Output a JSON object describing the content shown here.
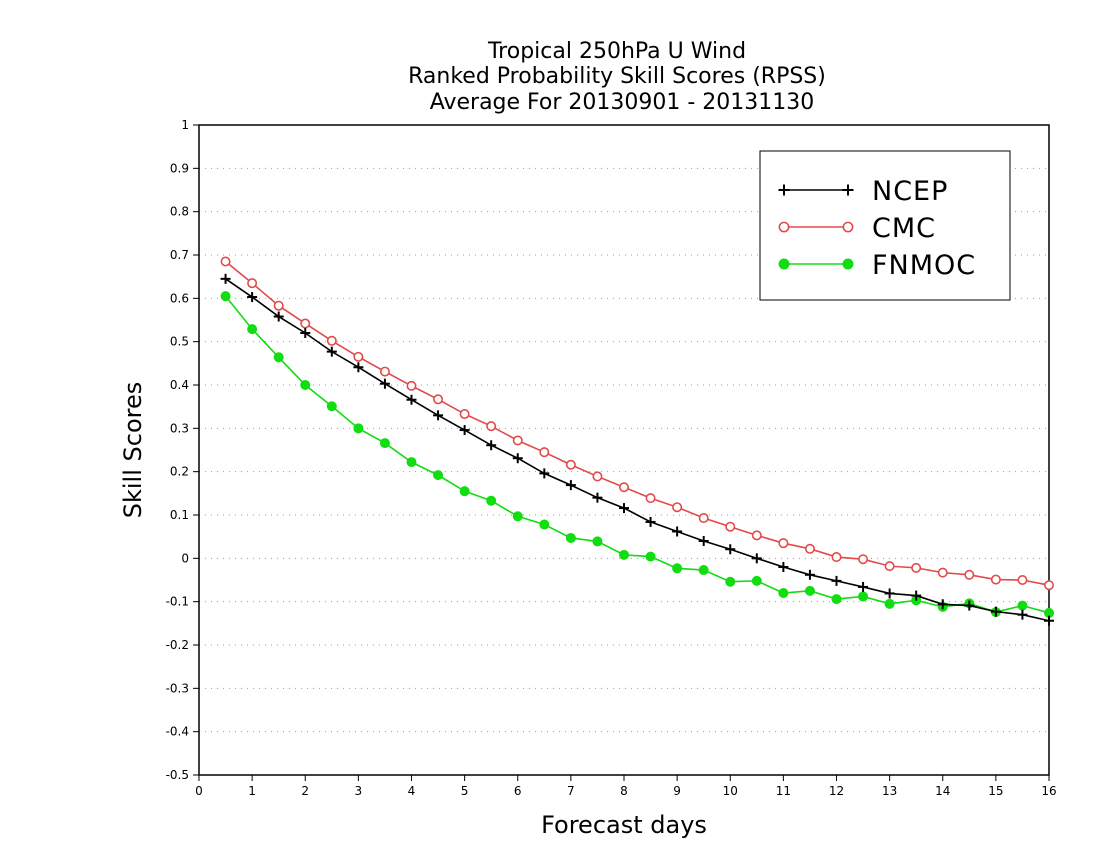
{
  "chart_data": {
    "type": "line",
    "title": [
      "Tropical 250hPa U Wind",
      "Ranked Probability Skill Scores (RPSS)",
      "Average For 20130901 - 20131130"
    ],
    "xlabel": "Forecast days",
    "ylabel": "Skill Scores",
    "xlim": [
      0,
      16
    ],
    "ylim": [
      -0.5,
      1
    ],
    "xticks": [
      "0",
      "1",
      "2",
      "3",
      "4",
      "5",
      "6",
      "7",
      "8",
      "9",
      "10",
      "11",
      "12",
      "13",
      "14",
      "15",
      "16"
    ],
    "yticks": [
      "1",
      "0.9",
      "0.8",
      "0.7",
      "0.6",
      "0.5",
      "0.4",
      "0.3",
      "0.2",
      "0.1",
      "0",
      "-0.1",
      "-0.2",
      "-0.3",
      "-0.4",
      "-0.5"
    ],
    "grid": "horizontal dotted",
    "legend_position": "top-right",
    "x": [
      0.5,
      1,
      1.5,
      2,
      2.5,
      3,
      3.5,
      4,
      4.5,
      5,
      5.5,
      6,
      6.5,
      7,
      7.5,
      8,
      8.5,
      9,
      9.5,
      10,
      10.5,
      11,
      11.5,
      12,
      12.5,
      13,
      13.5,
      14,
      14.5,
      15,
      15.5,
      16
    ],
    "series": [
      {
        "name": "NCEP",
        "color": "#000000",
        "marker": "plus",
        "values": [
          0.645,
          0.603,
          0.558,
          0.52,
          0.477,
          0.441,
          0.403,
          0.366,
          0.33,
          0.296,
          0.261,
          0.231,
          0.196,
          0.169,
          0.14,
          0.116,
          0.084,
          0.062,
          0.04,
          0.021,
          0.0,
          -0.02,
          -0.038,
          -0.052,
          -0.066,
          -0.081,
          -0.086,
          -0.106,
          -0.109,
          -0.123,
          -0.13,
          -0.144
        ]
      },
      {
        "name": "CMC",
        "color": "#e24a4a",
        "marker": "open-circle",
        "values": [
          0.685,
          0.635,
          0.583,
          0.542,
          0.502,
          0.465,
          0.431,
          0.398,
          0.367,
          0.333,
          0.305,
          0.272,
          0.245,
          0.216,
          0.189,
          0.164,
          0.139,
          0.118,
          0.093,
          0.073,
          0.053,
          0.035,
          0.022,
          0.003,
          -0.002,
          -0.018,
          -0.022,
          -0.033,
          -0.038,
          -0.049,
          -0.05,
          -0.062
        ]
      },
      {
        "name": "FNMOC",
        "color": "#11dd11",
        "marker": "filled-circle",
        "values": [
          0.605,
          0.529,
          0.464,
          0.4,
          0.351,
          0.3,
          0.266,
          0.222,
          0.192,
          0.155,
          0.133,
          0.097,
          0.078,
          0.047,
          0.039,
          0.008,
          0.004,
          -0.023,
          -0.027,
          -0.054,
          -0.052,
          -0.08,
          -0.075,
          -0.094,
          -0.088,
          -0.105,
          -0.097,
          -0.112,
          -0.104,
          -0.124,
          -0.109,
          -0.126
        ]
      }
    ]
  }
}
